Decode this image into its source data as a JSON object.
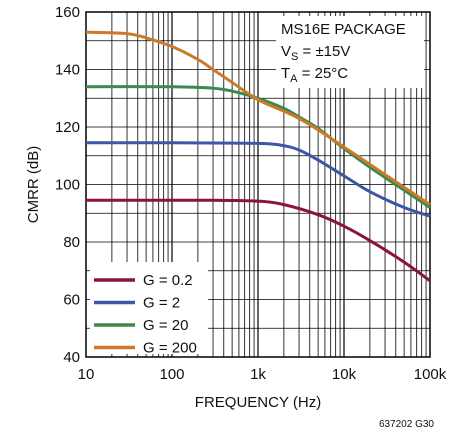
{
  "chart_data": {
    "type": "line",
    "xlabel": "FREQUENCY (Hz)",
    "ylabel": "CMRR (dB)",
    "x_scale": "log",
    "xlim": [
      10,
      100000
    ],
    "ylim": [
      40,
      160
    ],
    "x_ticks": [
      "10",
      "100",
      "1k",
      "10k",
      "100k"
    ],
    "y_ticks": [
      "40",
      "60",
      "80",
      "100",
      "120",
      "140",
      "160"
    ],
    "grid": true,
    "legend_position": "bottom-left",
    "annotation": {
      "line1": "MS16E PACKAGE",
      "vs_main": "V",
      "vs_sub": "S",
      "vs_rest": " = ±15V",
      "ta_main": "T",
      "ta_sub": "A",
      "ta_rest": " = 25°C"
    },
    "figure_id": "637202 G30",
    "series": [
      {
        "name": "G = 0.2",
        "color": "#8b1538",
        "x": [
          10,
          100,
          300,
          1000,
          2000,
          5000,
          10000,
          20000,
          50000,
          100000
        ],
        "y": [
          94.5,
          94.5,
          94.5,
          94.2,
          93.0,
          89.5,
          85.5,
          80.5,
          73.0,
          66.5
        ]
      },
      {
        "name": "G = 2",
        "color": "#3d56a5",
        "x": [
          10,
          100,
          1000,
          2000,
          3000,
          5000,
          10000,
          20000,
          50000,
          100000
        ],
        "y": [
          114.5,
          114.5,
          114.3,
          113.5,
          112.0,
          108.5,
          103.0,
          97.5,
          92.0,
          89.0
        ]
      },
      {
        "name": "G = 20",
        "color": "#3a8a4c",
        "x": [
          10,
          100,
          300,
          500,
          1000,
          2000,
          3000,
          5000,
          10000,
          20000,
          50000,
          100000
        ],
        "y": [
          134.0,
          134.0,
          133.5,
          132.5,
          130.0,
          126.5,
          123.5,
          119.5,
          112.5,
          106.0,
          98.0,
          92.0
        ]
      },
      {
        "name": "G = 200",
        "color": "#cc7a29",
        "x": [
          10,
          30,
          50,
          100,
          200,
          300,
          500,
          1000,
          2000,
          3000,
          5000,
          10000,
          20000,
          50000,
          100000
        ],
        "y": [
          153.0,
          152.5,
          151.0,
          148.0,
          143.5,
          140.0,
          135.5,
          129.5,
          125.5,
          123.0,
          119.0,
          113.0,
          107.0,
          99.0,
          93.0
        ]
      }
    ]
  }
}
